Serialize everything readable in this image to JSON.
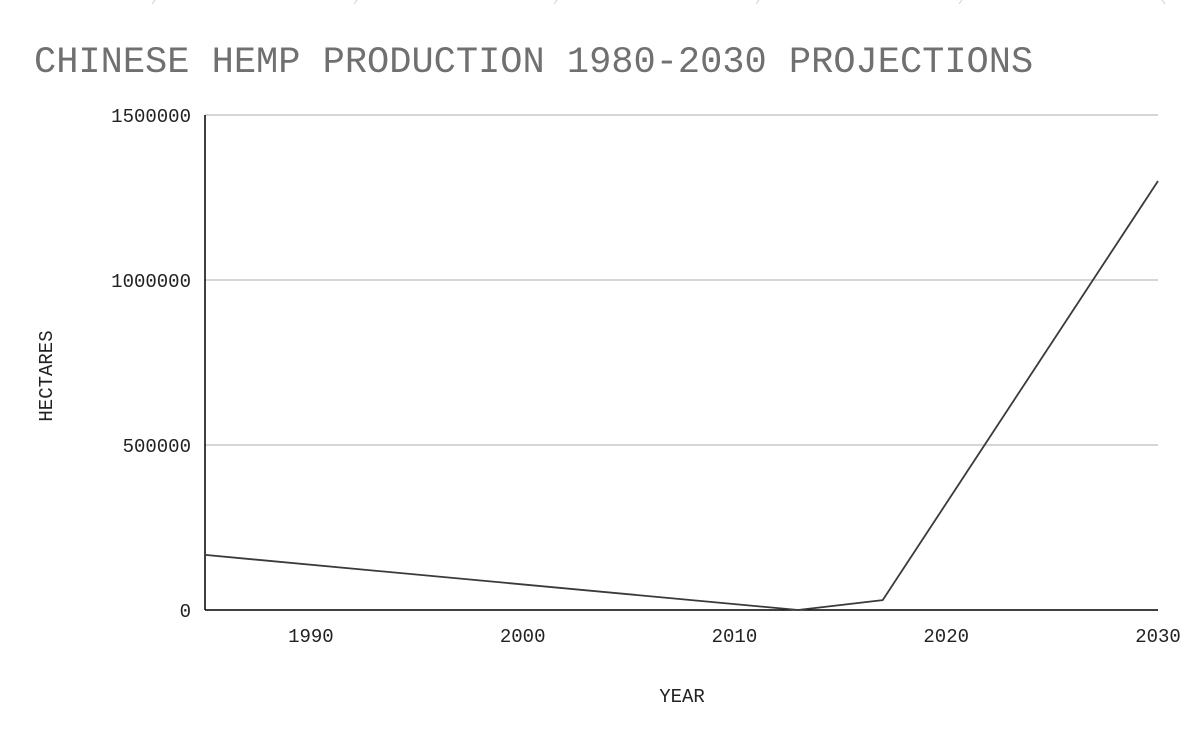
{
  "chart_data": {
    "type": "line",
    "title": "CHINESE HEMP PRODUCTION 1980-2030 PROJECTIONS",
    "xlabel": "YEAR",
    "ylabel": "HECTARES",
    "xlim": [
      1985,
      2030
    ],
    "ylim": [
      0,
      1500000
    ],
    "x_ticks": [
      1990,
      2000,
      2010,
      2020,
      2030
    ],
    "y_ticks": [
      0,
      500000,
      1000000,
      1500000
    ],
    "grid": true,
    "colors": {
      "line": "#3a3a3a",
      "grid": "#c8c8c8",
      "axis": "#000000",
      "title": "#707070"
    },
    "series": [
      {
        "x": [
          1985,
          2013,
          2017,
          2030
        ],
        "values": [
          167000,
          0,
          30000,
          1300000
        ]
      }
    ]
  }
}
